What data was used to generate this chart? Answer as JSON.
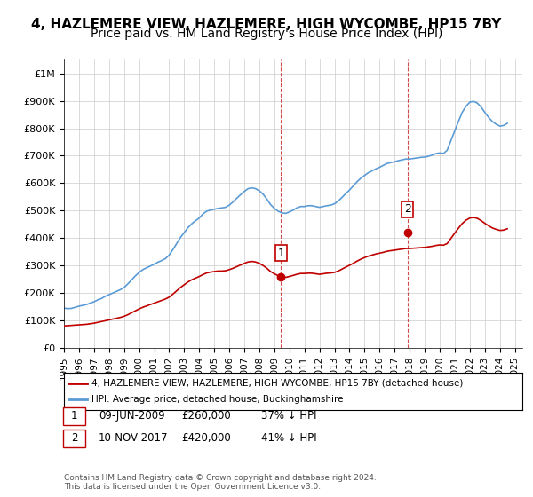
{
  "title": "4, HAZLEMERE VIEW, HAZLEMERE, HIGH WYCOMBE, HP15 7BY",
  "subtitle": "Price paid vs. HM Land Registry's House Price Index (HPI)",
  "title_fontsize": 11,
  "subtitle_fontsize": 10,
  "ylabel_ticks": [
    "£0",
    "£100K",
    "£200K",
    "£300K",
    "£400K",
    "£500K",
    "£600K",
    "£700K",
    "£800K",
    "£900K",
    "£1M"
  ],
  "ytick_vals": [
    0,
    100000,
    200000,
    300000,
    400000,
    500000,
    600000,
    700000,
    800000,
    900000,
    1000000
  ],
  "ylim": [
    0,
    1050000
  ],
  "xlim_start": 1995.0,
  "xlim_end": 2025.5,
  "hpi_color": "#5b9bd5",
  "price_color": "#c00000",
  "sale1_x": 2009.44,
  "sale1_y": 260000,
  "sale2_x": 2017.86,
  "sale2_y": 420000,
  "annotation1_label": "1",
  "annotation2_label": "2",
  "legend_label1": "4, HAZLEMERE VIEW, HAZLEMERE, HIGH WYCOMBE, HP15 7BY (detached house)",
  "legend_label2": "HPI: Average price, detached house, Buckinghamshire",
  "table_row1": [
    "1",
    "09-JUN-2009",
    "£260,000",
    "37% ↓ HPI"
  ],
  "table_row2": [
    "2",
    "10-NOV-2017",
    "£420,000",
    "41% ↓ HPI"
  ],
  "footer": "Contains HM Land Registry data © Crown copyright and database right 2024.\nThis data is licensed under the Open Government Licence v3.0.",
  "background_color": "#ffffff",
  "grid_color": "#cccccc",
  "hpi_data_x": [
    1995.0,
    1995.25,
    1995.5,
    1995.75,
    1996.0,
    1996.25,
    1996.5,
    1996.75,
    1997.0,
    1997.25,
    1997.5,
    1997.75,
    1998.0,
    1998.25,
    1998.5,
    1998.75,
    1999.0,
    1999.25,
    1999.5,
    1999.75,
    2000.0,
    2000.25,
    2000.5,
    2000.75,
    2001.0,
    2001.25,
    2001.5,
    2001.75,
    2002.0,
    2002.25,
    2002.5,
    2002.75,
    2003.0,
    2003.25,
    2003.5,
    2003.75,
    2004.0,
    2004.25,
    2004.5,
    2004.75,
    2005.0,
    2005.25,
    2005.5,
    2005.75,
    2006.0,
    2006.25,
    2006.5,
    2006.75,
    2007.0,
    2007.25,
    2007.5,
    2007.75,
    2008.0,
    2008.25,
    2008.5,
    2008.75,
    2009.0,
    2009.25,
    2009.5,
    2009.75,
    2010.0,
    2010.25,
    2010.5,
    2010.75,
    2011.0,
    2011.25,
    2011.5,
    2011.75,
    2012.0,
    2012.25,
    2012.5,
    2012.75,
    2013.0,
    2013.25,
    2013.5,
    2013.75,
    2014.0,
    2014.25,
    2014.5,
    2014.75,
    2015.0,
    2015.25,
    2015.5,
    2015.75,
    2016.0,
    2016.25,
    2016.5,
    2016.75,
    2017.0,
    2017.25,
    2017.5,
    2017.75,
    2018.0,
    2018.25,
    2018.5,
    2018.75,
    2019.0,
    2019.25,
    2019.5,
    2019.75,
    2020.0,
    2020.25,
    2020.5,
    2020.75,
    2021.0,
    2021.25,
    2021.5,
    2021.75,
    2022.0,
    2022.25,
    2022.5,
    2022.75,
    2023.0,
    2023.25,
    2023.5,
    2023.75,
    2024.0,
    2024.25,
    2024.5
  ],
  "hpi_data_y": [
    145000,
    143000,
    144000,
    148000,
    152000,
    155000,
    158000,
    163000,
    168000,
    175000,
    180000,
    188000,
    194000,
    200000,
    206000,
    212000,
    220000,
    233000,
    248000,
    262000,
    275000,
    285000,
    292000,
    298000,
    305000,
    312000,
    318000,
    325000,
    338000,
    358000,
    380000,
    402000,
    420000,
    438000,
    452000,
    463000,
    473000,
    488000,
    498000,
    502000,
    505000,
    508000,
    510000,
    512000,
    520000,
    532000,
    545000,
    558000,
    570000,
    580000,
    583000,
    580000,
    572000,
    560000,
    542000,
    522000,
    508000,
    498000,
    492000,
    490000,
    495000,
    502000,
    510000,
    515000,
    515000,
    518000,
    518000,
    515000,
    512000,
    515000,
    518000,
    520000,
    525000,
    535000,
    548000,
    562000,
    575000,
    590000,
    605000,
    618000,
    628000,
    638000,
    645000,
    652000,
    658000,
    665000,
    672000,
    675000,
    678000,
    682000,
    685000,
    688000,
    688000,
    690000,
    692000,
    694000,
    695000,
    698000,
    702000,
    708000,
    710000,
    708000,
    720000,
    755000,
    790000,
    825000,
    858000,
    880000,
    895000,
    898000,
    892000,
    878000,
    858000,
    840000,
    825000,
    815000,
    808000,
    810000,
    818000
  ],
  "price_data_x": [
    1995.0,
    1995.25,
    1995.5,
    1995.75,
    1996.0,
    1996.25,
    1996.5,
    1996.75,
    1997.0,
    1997.25,
    1997.5,
    1997.75,
    1998.0,
    1998.25,
    1998.5,
    1998.75,
    1999.0,
    1999.25,
    1999.5,
    1999.75,
    2000.0,
    2000.25,
    2000.5,
    2000.75,
    2001.0,
    2001.25,
    2001.5,
    2001.75,
    2002.0,
    2002.25,
    2002.5,
    2002.75,
    2003.0,
    2003.25,
    2003.5,
    2003.75,
    2004.0,
    2004.25,
    2004.5,
    2004.75,
    2005.0,
    2005.25,
    2005.5,
    2005.75,
    2006.0,
    2006.25,
    2006.5,
    2006.75,
    2007.0,
    2007.25,
    2007.5,
    2007.75,
    2008.0,
    2008.25,
    2008.5,
    2008.75,
    2009.0,
    2009.25,
    2009.5,
    2009.75,
    2010.0,
    2010.25,
    2010.5,
    2010.75,
    2011.0,
    2011.25,
    2011.5,
    2011.75,
    2012.0,
    2012.25,
    2012.5,
    2012.75,
    2013.0,
    2013.25,
    2013.5,
    2013.75,
    2014.0,
    2014.25,
    2014.5,
    2014.75,
    2015.0,
    2015.25,
    2015.5,
    2015.75,
    2016.0,
    2016.25,
    2016.5,
    2016.75,
    2017.0,
    2017.25,
    2017.5,
    2017.75,
    2018.0,
    2018.25,
    2018.5,
    2018.75,
    2019.0,
    2019.25,
    2019.5,
    2019.75,
    2020.0,
    2020.25,
    2020.5,
    2020.75,
    2021.0,
    2021.25,
    2021.5,
    2021.75,
    2022.0,
    2022.25,
    2022.5,
    2022.75,
    2023.0,
    2023.25,
    2023.5,
    2023.75,
    2024.0,
    2024.25,
    2024.5
  ],
  "price_data_y": [
    80000,
    81000,
    82000,
    83000,
    84000,
    85000,
    86000,
    88000,
    90000,
    93000,
    96000,
    99000,
    102000,
    105000,
    108000,
    111000,
    115000,
    121000,
    128000,
    135000,
    142000,
    148000,
    153000,
    158000,
    163000,
    168000,
    173000,
    178000,
    185000,
    196000,
    208000,
    220000,
    230000,
    240000,
    248000,
    254000,
    260000,
    267000,
    273000,
    276000,
    278000,
    280000,
    280000,
    281000,
    285000,
    290000,
    296000,
    302000,
    308000,
    313000,
    315000,
    313000,
    308000,
    300000,
    290000,
    278000,
    270000,
    263000,
    259000,
    257000,
    260000,
    264000,
    268000,
    271000,
    271000,
    272000,
    272000,
    270000,
    268000,
    270000,
    272000,
    273000,
    275000,
    280000,
    287000,
    294000,
    301000,
    308000,
    316000,
    323000,
    329000,
    334000,
    338000,
    342000,
    345000,
    348000,
    352000,
    354000,
    356000,
    358000,
    360000,
    362000,
    362000,
    363000,
    364000,
    365000,
    366000,
    368000,
    370000,
    373000,
    375000,
    374000,
    380000,
    399000,
    418000,
    436000,
    453000,
    465000,
    473000,
    475000,
    472000,
    464000,
    454000,
    445000,
    437000,
    432000,
    428000,
    429000,
    434000
  ]
}
